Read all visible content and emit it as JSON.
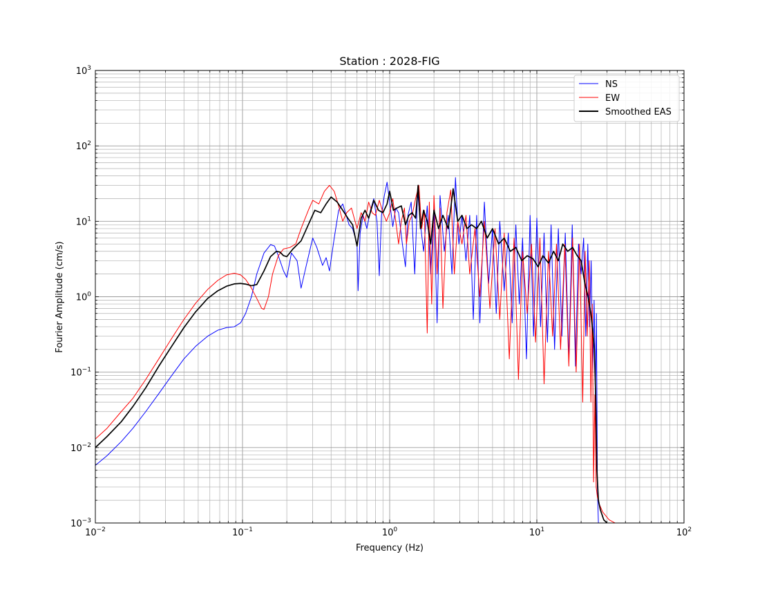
{
  "chart_data": {
    "type": "line",
    "title": "Station : 2028-FIG",
    "xlabel": "Frequency (Hz)",
    "ylabel": "Fourier Amplitude (cm/s)",
    "xscale": "log",
    "yscale": "log",
    "xlim": [
      0.01,
      100
    ],
    "ylim": [
      0.001,
      1000
    ],
    "grid": true,
    "legend_position": "top-right",
    "x_ticks": [
      {
        "base": "10",
        "exp": "−2"
      },
      {
        "base": "10",
        "exp": "−1"
      },
      {
        "base": "10",
        "exp": "0"
      },
      {
        "base": "10",
        "exp": "1"
      },
      {
        "base": "10",
        "exp": "2"
      }
    ],
    "y_ticks": [
      {
        "base": "10",
        "exp": "−3"
      },
      {
        "base": "10",
        "exp": "−2"
      },
      {
        "base": "10",
        "exp": "−1"
      },
      {
        "base": "10",
        "exp": "0"
      },
      {
        "base": "10",
        "exp": "1"
      },
      {
        "base": "10",
        "exp": "2"
      },
      {
        "base": "10",
        "exp": "3"
      }
    ],
    "series": [
      {
        "name": "NS",
        "color": "#0000ff",
        "x": [
          0.01,
          0.012,
          0.015,
          0.018,
          0.022,
          0.027,
          0.033,
          0.04,
          0.048,
          0.058,
          0.068,
          0.078,
          0.088,
          0.097,
          0.105,
          0.115,
          0.125,
          0.14,
          0.155,
          0.165,
          0.175,
          0.19,
          0.2,
          0.215,
          0.235,
          0.25,
          0.27,
          0.3,
          0.32,
          0.35,
          0.37,
          0.39,
          0.42,
          0.45,
          0.48,
          0.5,
          0.53,
          0.56,
          0.6,
          0.61,
          0.63,
          0.66,
          0.7,
          0.74,
          0.78,
          0.82,
          0.85,
          0.88,
          0.92,
          0.96,
          1.0,
          1.05,
          1.1,
          1.15,
          1.22,
          1.28,
          1.33,
          1.4,
          1.48,
          1.55,
          1.62,
          1.7,
          1.8,
          1.9,
          2.0,
          2.1,
          2.2,
          2.35,
          2.5,
          2.65,
          2.8,
          2.95,
          3.1,
          3.3,
          3.5,
          3.7,
          3.9,
          4.1,
          4.4,
          4.7,
          5.0,
          5.3,
          5.6,
          6.0,
          6.4,
          6.8,
          7.2,
          7.6,
          8.0,
          8.5,
          9.0,
          9.5,
          10.0,
          10.6,
          11.2,
          11.8,
          12.5,
          13.2,
          14.0,
          14.8,
          15.6,
          16.5,
          17.4,
          18.3,
          19.2,
          20.0,
          20.8,
          21.5,
          22.2,
          22.8,
          23.4,
          24.0,
          24.5,
          25.0,
          25.4,
          25.8,
          26.2
        ],
        "y": [
          0.0058,
          0.0078,
          0.012,
          0.018,
          0.03,
          0.052,
          0.09,
          0.15,
          0.22,
          0.3,
          0.36,
          0.39,
          0.4,
          0.45,
          0.6,
          1.0,
          2.0,
          3.8,
          4.9,
          4.7,
          3.5,
          2.2,
          1.8,
          3.8,
          3.0,
          1.3,
          2.5,
          6.0,
          4.5,
          2.6,
          3.3,
          2.2,
          6.0,
          14.0,
          17.0,
          13.0,
          9.0,
          8.0,
          5.0,
          1.2,
          7.0,
          12.0,
          8.0,
          14.0,
          20.0,
          10.0,
          1.9,
          12.0,
          22.0,
          33.0,
          18.0,
          8.5,
          15.0,
          13.0,
          5.0,
          2.5,
          12.0,
          18.0,
          2.0,
          25.0,
          9.0,
          4.0,
          16.0,
          2.0,
          15.0,
          0.45,
          22.0,
          4.0,
          12.0,
          2.0,
          38.0,
          5.0,
          12.0,
          3.0,
          12.0,
          0.5,
          12.0,
          0.45,
          18.0,
          1.5,
          8.0,
          0.6,
          10.0,
          1.2,
          7.0,
          0.45,
          9.0,
          0.8,
          6.0,
          0.15,
          12.0,
          0.3,
          11.0,
          0.4,
          7.0,
          0.25,
          9.0,
          0.2,
          8.0,
          0.3,
          7.0,
          0.15,
          9.0,
          0.12,
          5.0,
          2.0,
          6.0,
          0.3,
          5.0,
          0.4,
          3.0,
          0.1,
          0.9,
          0.05,
          0.6,
          0.003,
          0.001
        ]
      },
      {
        "name": "EW",
        "color": "#ff0000",
        "x": [
          0.01,
          0.012,
          0.015,
          0.018,
          0.022,
          0.027,
          0.033,
          0.04,
          0.048,
          0.058,
          0.068,
          0.078,
          0.088,
          0.097,
          0.105,
          0.115,
          0.125,
          0.135,
          0.14,
          0.15,
          0.16,
          0.175,
          0.19,
          0.21,
          0.23,
          0.25,
          0.28,
          0.3,
          0.33,
          0.36,
          0.39,
          0.42,
          0.45,
          0.48,
          0.51,
          0.55,
          0.6,
          0.64,
          0.68,
          0.72,
          0.76,
          0.8,
          0.85,
          0.9,
          0.95,
          1.0,
          1.05,
          1.1,
          1.15,
          1.2,
          1.26,
          1.3,
          1.36,
          1.42,
          1.5,
          1.58,
          1.65,
          1.72,
          1.8,
          1.86,
          1.93,
          2.0,
          2.1,
          2.2,
          2.3,
          2.45,
          2.6,
          2.75,
          2.9,
          3.1,
          3.3,
          3.5,
          3.8,
          4.1,
          4.4,
          4.8,
          5.2,
          5.6,
          6.0,
          6.5,
          7.0,
          7.5,
          8.0,
          8.6,
          9.2,
          9.8,
          10.5,
          11.2,
          12.0,
          12.8,
          13.6,
          14.5,
          15.5,
          16.5,
          17.5,
          18.5,
          19.5,
          20.5,
          21.3,
          22.0,
          22.7,
          23.3,
          23.8,
          24.3,
          24.8,
          25.3,
          25.8,
          26.5,
          28.0,
          31.0,
          34.0
        ],
        "y": [
          0.013,
          0.018,
          0.03,
          0.045,
          0.08,
          0.15,
          0.28,
          0.5,
          0.82,
          1.25,
          1.65,
          1.95,
          2.05,
          1.95,
          1.7,
          1.3,
          0.95,
          0.7,
          0.68,
          1.0,
          2.0,
          3.5,
          4.3,
          4.5,
          5.0,
          8.0,
          14.0,
          19.0,
          17.0,
          25.0,
          30.0,
          25.0,
          16.0,
          10.0,
          13.0,
          15.0,
          8.0,
          13.0,
          10.0,
          18.0,
          13.0,
          12.0,
          19.0,
          13.0,
          10.0,
          13.0,
          20.0,
          10.0,
          5.0,
          10.0,
          15.0,
          5.0,
          10.0,
          12.0,
          20.0,
          30.0,
          8.0,
          14.0,
          0.33,
          18.0,
          0.8,
          22.0,
          2.0,
          15.0,
          0.7,
          13.0,
          26.0,
          2.0,
          10.0,
          5.0,
          12.0,
          2.0,
          8.0,
          1.0,
          10.0,
          0.7,
          8.0,
          0.5,
          7.0,
          0.15,
          6.0,
          0.08,
          4.0,
          0.6,
          5.0,
          0.25,
          6.0,
          0.07,
          4.0,
          0.3,
          5.0,
          0.2,
          5.0,
          0.12,
          6.0,
          0.1,
          5.0,
          0.04,
          4.0,
          0.3,
          3.0,
          0.04,
          0.8,
          0.0035,
          0.05,
          0.003,
          0.0022,
          0.0018,
          0.0014,
          0.0011,
          0.001
        ]
      },
      {
        "name": "Smoothed EAS",
        "color": "#000000",
        "x": [
          0.01,
          0.012,
          0.015,
          0.018,
          0.022,
          0.027,
          0.033,
          0.04,
          0.048,
          0.058,
          0.068,
          0.078,
          0.088,
          0.097,
          0.105,
          0.115,
          0.125,
          0.14,
          0.155,
          0.17,
          0.18,
          0.19,
          0.2,
          0.22,
          0.25,
          0.28,
          0.31,
          0.34,
          0.37,
          0.4,
          0.44,
          0.48,
          0.52,
          0.56,
          0.6,
          0.64,
          0.68,
          0.72,
          0.78,
          0.84,
          0.9,
          0.96,
          1.0,
          1.06,
          1.12,
          1.2,
          1.28,
          1.35,
          1.42,
          1.5,
          1.56,
          1.62,
          1.7,
          1.8,
          1.9,
          2.0,
          2.15,
          2.3,
          2.5,
          2.7,
          2.9,
          3.1,
          3.35,
          3.6,
          3.9,
          4.2,
          4.6,
          5.0,
          5.5,
          6.0,
          6.6,
          7.2,
          7.9,
          8.6,
          9.4,
          10.2,
          11.0,
          12.0,
          13.0,
          14.0,
          15.0,
          16.2,
          17.5,
          18.8,
          20.0,
          21.2,
          22.3,
          23.3,
          24.0,
          24.6,
          25.1,
          25.6,
          26.2,
          27.0,
          28.5,
          30.0
        ],
        "y": [
          0.01,
          0.014,
          0.022,
          0.035,
          0.062,
          0.12,
          0.22,
          0.39,
          0.63,
          0.95,
          1.2,
          1.38,
          1.48,
          1.5,
          1.47,
          1.4,
          1.45,
          2.2,
          3.4,
          4.0,
          3.9,
          3.5,
          3.4,
          4.3,
          5.5,
          9.0,
          14.0,
          13.0,
          17.0,
          21.0,
          18.0,
          14.0,
          11.0,
          9.0,
          4.7,
          11.0,
          14.0,
          11.0,
          19.0,
          14.0,
          13.0,
          17.0,
          25.0,
          14.0,
          15.0,
          16.0,
          9.0,
          12.0,
          13.0,
          11.0,
          30.0,
          8.0,
          14.0,
          10.0,
          5.0,
          14.0,
          8.0,
          12.0,
          8.0,
          27.0,
          10.0,
          12.0,
          8.0,
          9.0,
          8.0,
          10.0,
          6.0,
          8.0,
          5.0,
          6.0,
          4.0,
          4.5,
          3.0,
          3.5,
          3.2,
          2.5,
          3.5,
          2.8,
          4.0,
          3.0,
          5.0,
          4.0,
          4.5,
          3.5,
          3.0,
          1.5,
          1.0,
          0.6,
          0.35,
          0.2,
          0.05,
          0.005,
          0.002,
          0.0015,
          0.0011,
          0.001
        ]
      }
    ]
  }
}
